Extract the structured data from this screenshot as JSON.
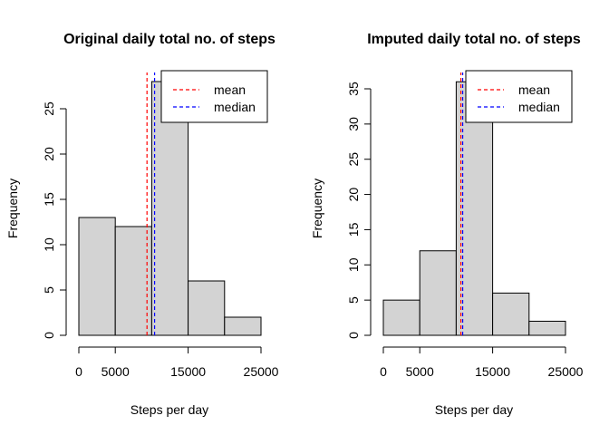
{
  "chart_data": [
    {
      "type": "bar",
      "title": "Original daily total no. of steps",
      "xlabel": "Steps per day",
      "ylabel": "Frequency",
      "bin_edges": [
        0,
        5000,
        10000,
        15000,
        20000,
        25000
      ],
      "values": [
        13,
        12,
        28,
        6,
        2
      ],
      "xlim": [
        0,
        25000
      ],
      "ylim": [
        0,
        28
      ],
      "xticks": [
        0,
        5000,
        15000,
        25000
      ],
      "xtick_labels": [
        "0",
        "5000",
        "15000",
        "25000"
      ],
      "yticks": [
        0,
        5,
        10,
        15,
        20,
        25
      ],
      "ytick_labels": [
        "0",
        "5",
        "10",
        "15",
        "20",
        "25"
      ],
      "bar_color": "#d3d3d3",
      "lines": [
        {
          "name": "mean",
          "x": 9354,
          "color": "#ff0000",
          "style": "dashed"
        },
        {
          "name": "median",
          "x": 10395,
          "color": "#0000ff",
          "style": "dashed"
        }
      ],
      "legend": {
        "position": "top-right",
        "entries": [
          "mean",
          "median"
        ]
      },
      "grid": false
    },
    {
      "type": "bar",
      "title": "Imputed daily total no. of steps",
      "xlabel": "Steps per day",
      "ylabel": "Frequency",
      "bin_edges": [
        0,
        5000,
        10000,
        15000,
        20000,
        25000
      ],
      "values": [
        5,
        12,
        36,
        6,
        2
      ],
      "xlim": [
        0,
        25000
      ],
      "ylim": [
        0,
        36
      ],
      "xticks": [
        0,
        5000,
        15000,
        25000
      ],
      "xtick_labels": [
        "0",
        "5000",
        "15000",
        "25000"
      ],
      "yticks": [
        0,
        5,
        10,
        15,
        20,
        25,
        30,
        35
      ],
      "ytick_labels": [
        "0",
        "5",
        "10",
        "15",
        "20",
        "25",
        "30",
        "35"
      ],
      "bar_color": "#d3d3d3",
      "lines": [
        {
          "name": "mean",
          "x": 10766,
          "color": "#ff0000",
          "style": "dashed"
        },
        {
          "name": "median",
          "x": 10766,
          "color": "#0000ff",
          "style": "dashed"
        }
      ],
      "legend": {
        "position": "top-right",
        "entries": [
          "mean",
          "median"
        ]
      },
      "grid": false
    }
  ]
}
